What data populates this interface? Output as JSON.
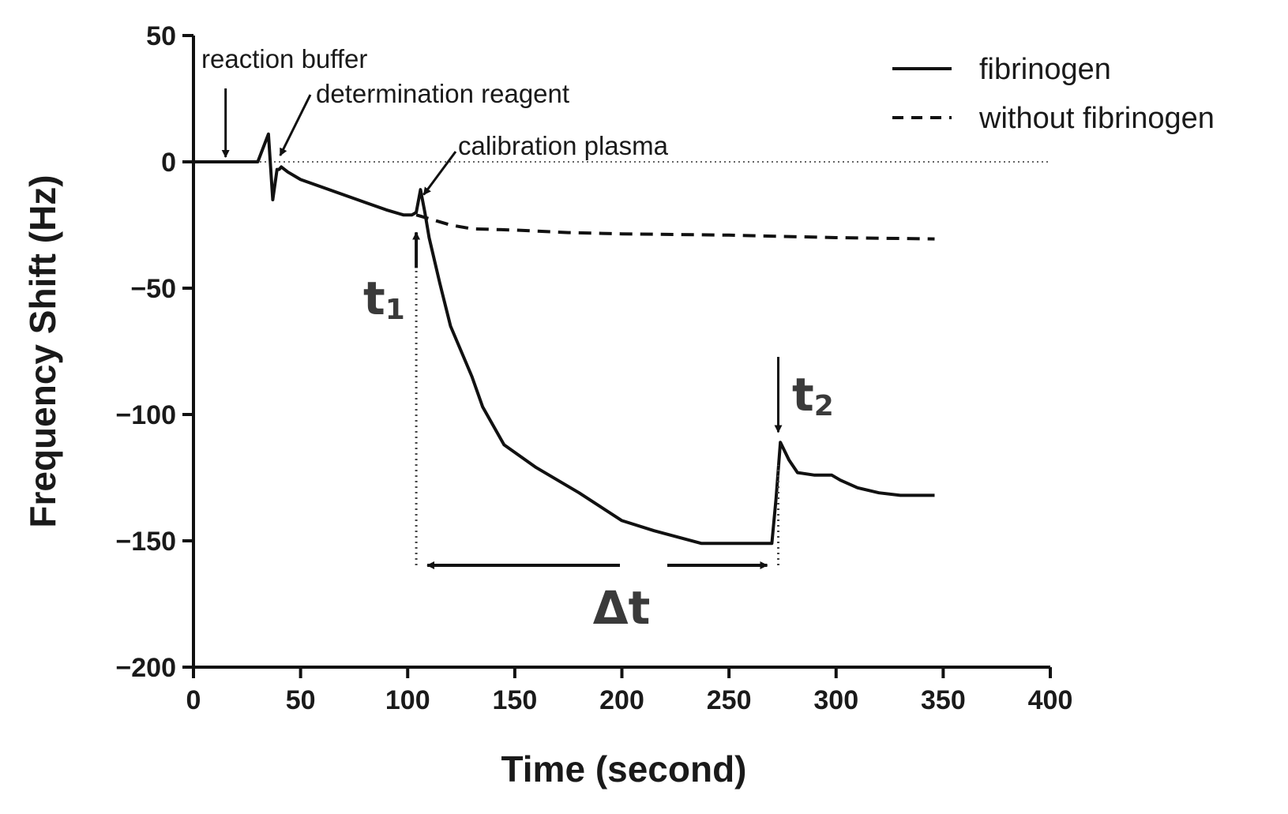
{
  "chart_data": {
    "type": "line",
    "xlabel": "Time (second)",
    "ylabel": "Frequency Shift (Hz)",
    "xlim": [
      0,
      400
    ],
    "ylim": [
      -200,
      50
    ],
    "xticks": [
      0,
      50,
      100,
      150,
      200,
      250,
      300,
      350,
      400
    ],
    "yticks": [
      50,
      0,
      -50,
      -100,
      -150,
      -200
    ],
    "ytick_labels": [
      "50",
      "0",
      "-50",
      "-100",
      "-150",
      "-200"
    ],
    "grid": false,
    "baseline": {
      "y": 0,
      "style": "dotted",
      "x_range": [
        0,
        400
      ]
    },
    "legend_position": "top-right",
    "series": [
      {
        "name": "fibrinogen",
        "style": "solid",
        "x": [
          0,
          30,
          35,
          37,
          39,
          40,
          41,
          44,
          50,
          60,
          70,
          80,
          90,
          98,
          102,
          104,
          106,
          108,
          110,
          115,
          120,
          130,
          135,
          145,
          160,
          180,
          200,
          215,
          237,
          255,
          270,
          272,
          274,
          278,
          282,
          290,
          298,
          302,
          310,
          320,
          330,
          340,
          346
        ],
        "y": [
          0,
          0,
          11,
          -15,
          -3,
          -3,
          -2,
          -4,
          -7,
          -10,
          -13,
          -16,
          -19,
          -21,
          -21,
          -20,
          -11,
          -20,
          -30,
          -48,
          -65,
          -85,
          -97,
          -112,
          -121,
          -131,
          -142,
          -146,
          -151,
          -151,
          -151,
          -133,
          -111,
          -118,
          -123,
          -124,
          -124,
          -126,
          -129,
          -131,
          -132,
          -132,
          -132
        ]
      },
      {
        "name": "without fibrinogen",
        "style": "dashed",
        "x": [
          104,
          112,
          120,
          130,
          150,
          175,
          200,
          250,
          300,
          346
        ],
        "y": [
          -21,
          -23,
          -25,
          -26.5,
          -27,
          -28,
          -28.5,
          -29,
          -30,
          -30.5
        ]
      }
    ],
    "annotations": [
      {
        "text": "reaction buffer",
        "x": 15
      },
      {
        "text": "determination reagent",
        "x": 39
      },
      {
        "text": "calibration plasma",
        "x": 106
      }
    ],
    "markers": {
      "t1": {
        "symbol": "t",
        "sub": "1",
        "x": 104
      },
      "t2": {
        "symbol": "t",
        "sub": "2",
        "x": 273
      },
      "delta": {
        "text": "Δt"
      }
    }
  }
}
